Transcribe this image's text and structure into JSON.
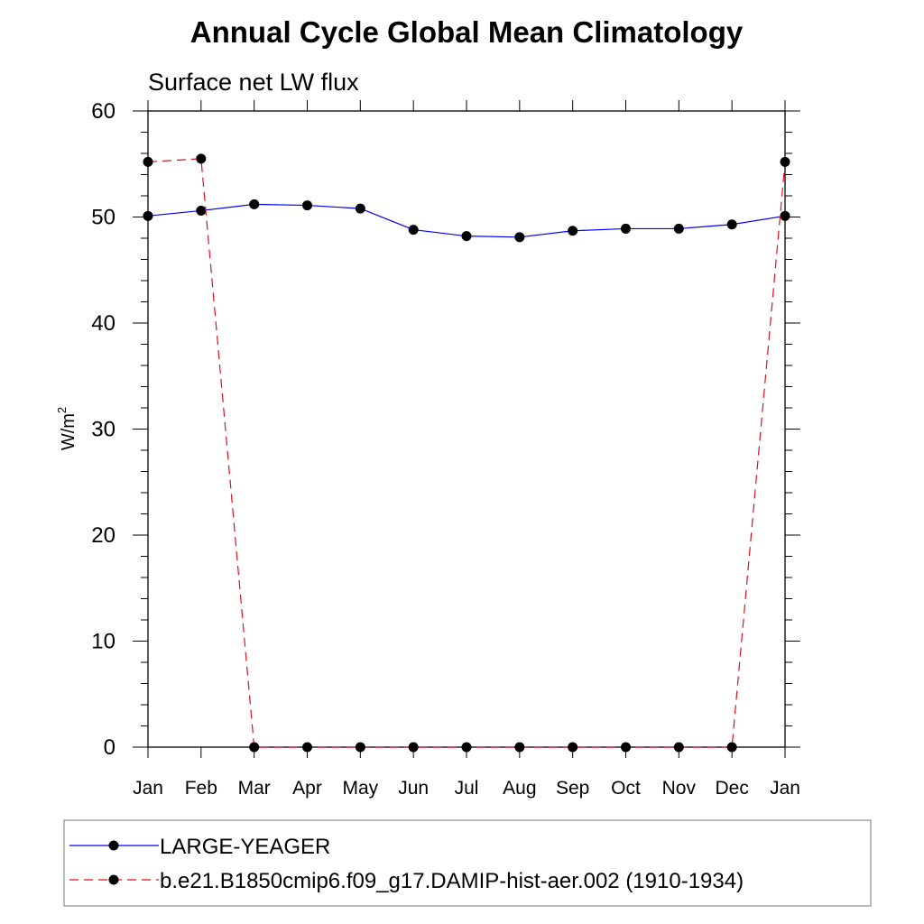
{
  "chart_data": {
    "type": "line",
    "title": "Annual Cycle Global Mean Climatology",
    "subtitle": "Surface net LW flux",
    "ylabel": "W/m",
    "ylabel_superscript": "2",
    "xlabel": "",
    "categories": [
      "Jan",
      "Feb",
      "Mar",
      "Apr",
      "May",
      "Jun",
      "Jul",
      "Aug",
      "Sep",
      "Oct",
      "Nov",
      "Dec",
      "Jan"
    ],
    "ylim": [
      0,
      60
    ],
    "yticks": [
      "0",
      "10",
      "20",
      "30",
      "40",
      "50",
      "60"
    ],
    "grid": false,
    "legend_position": "bottom",
    "series": [
      {
        "name": "LARGE-YEAGER",
        "color": "#0000ff",
        "line_style": "solid",
        "marker": "filled-circle",
        "values": [
          50.1,
          50.6,
          51.2,
          51.1,
          50.8,
          48.8,
          48.2,
          48.1,
          48.7,
          48.9,
          48.9,
          49.3,
          50.1
        ]
      },
      {
        "name": "b.e21.B1850cmip6.f09_g17.DAMIP-hist-aer.002 (1910-1934)",
        "color": "#e0101c",
        "line_style": "dashed",
        "marker": "filled-circle",
        "values": [
          55.2,
          55.5,
          0,
          0,
          0,
          0,
          0,
          0,
          0,
          0,
          0,
          0,
          55.2
        ]
      }
    ]
  }
}
